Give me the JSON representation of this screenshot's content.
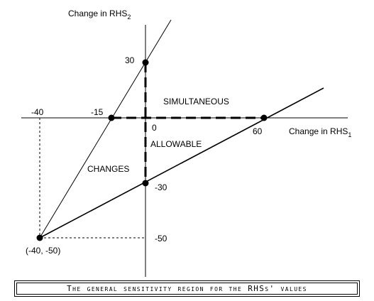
{
  "axes": {
    "x_label_main": "Change in RHS",
    "x_label_sub": "1",
    "y_label_main": "Change in RHS",
    "y_label_sub": "2"
  },
  "tick_labels": {
    "x_neg40": "-40",
    "x_neg15": "-15",
    "origin": "0",
    "x_60": "60",
    "y_30": "30",
    "y_neg30": "-30",
    "y_neg50": "-50"
  },
  "points": {
    "corner": "(-40, -50)"
  },
  "region_text": {
    "line1": "SIMULTANEOUS",
    "line2": "ALLOWABLE",
    "line3": "CHANGES"
  },
  "caption": "The general sensitivity region for the RHSs' values"
}
